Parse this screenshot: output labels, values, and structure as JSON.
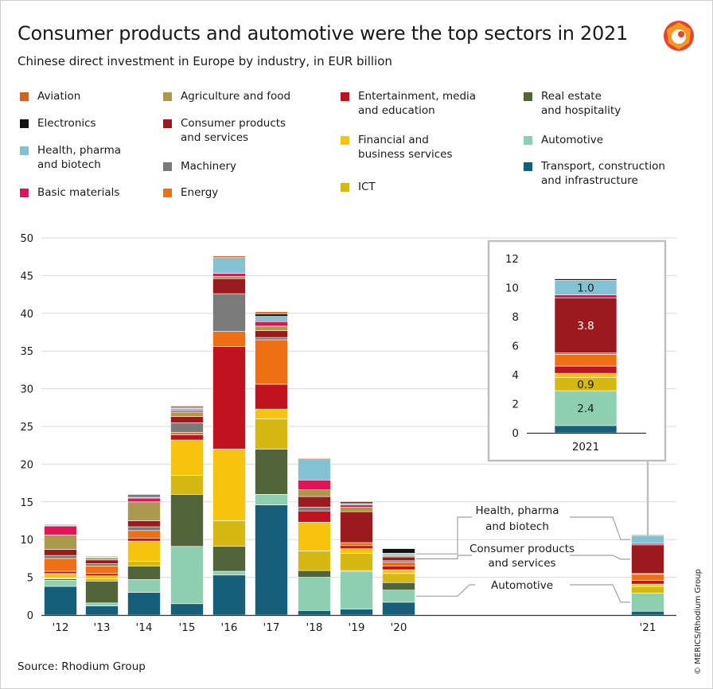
{
  "title": "Consumer products and automotive were the top sectors in 2021",
  "subtitle": "Chinese direct investment in Europe by industry, in EUR billion",
  "source": "Source: Rhodium Group",
  "credit": "© MERICS/Rhodium Group",
  "logo_icon": "merics-logo-icon",
  "colors": {
    "Transport, construction and infrastructure": "#155f7a",
    "Automotive": "#8ecfb2",
    "Real estate and hospitality": "#52653a",
    "ICT": "#d6b812",
    "Financial and business services": "#f6c40d",
    "Entertainment, media and education": "#c0121f",
    "Energy": "#ef7012",
    "Machinery": "#7a7a7a",
    "Consumer products and services": "#9b1a1e",
    "Agriculture and food": "#ab9a4e",
    "Basic materials": "#e01456",
    "Health, pharma and biotech": "#82c2d2",
    "Electronics": "#111111",
    "Aviation": "#d9601a"
  },
  "legend": [
    {
      "name": "Aviation",
      "label": [
        "Aviation"
      ]
    },
    {
      "name": "Electronics",
      "label": [
        "Electronics"
      ]
    },
    {
      "name": "Health, pharma and biotech",
      "label": [
        "Health, pharma",
        "and biotech"
      ]
    },
    {
      "name": "Basic materials",
      "label": [
        "Basic materials"
      ]
    },
    {
      "name": "Agriculture and food",
      "label": [
        "Agriculture and food"
      ]
    },
    {
      "name": "Consumer products and services",
      "label": [
        "Consumer products",
        "and services"
      ]
    },
    {
      "name": "Machinery",
      "label": [
        "Machinery"
      ]
    },
    {
      "name": "Energy",
      "label": [
        "Energy"
      ]
    },
    {
      "name": "Entertainment, media and education",
      "label": [
        "Entertainment, media",
        "and education"
      ]
    },
    {
      "name": "Financial and business services",
      "label": [
        "Financial and",
        "business services"
      ]
    },
    {
      "name": "ICT",
      "label": [
        "ICT"
      ]
    },
    {
      "name": "Real estate and hospitality",
      "label": [
        "Real estate",
        "and hospitality"
      ]
    },
    {
      "name": "Automotive",
      "label": [
        "Automotive"
      ]
    },
    {
      "name": "Transport, construction and infrastructure",
      "label": [
        "Transport, construction",
        "and infrastructure"
      ]
    }
  ],
  "annotations": [
    {
      "name": "Health, pharma and biotech",
      "label": [
        "Health, pharma",
        "and biotech"
      ]
    },
    {
      "name": "Consumer products and services",
      "label": [
        "Consumer products",
        "and services"
      ]
    },
    {
      "name": "Automotive",
      "label": [
        "Automotive"
      ]
    }
  ],
  "chart_data": [
    {
      "type": "bar",
      "stacked": true,
      "categories": [
        "'12",
        "'13",
        "'14",
        "'15",
        "'16",
        "'17",
        "'18",
        "'19",
        "'20",
        "'21"
      ],
      "ylim": [
        0,
        50
      ],
      "yticks": [
        0,
        5,
        10,
        15,
        20,
        25,
        30,
        35,
        40,
        45,
        50
      ],
      "grid": true,
      "series": [
        {
          "name": "Transport, construction and infrastructure",
          "values": [
            3.8,
            1.2,
            3.0,
            1.5,
            5.3,
            14.6,
            0.6,
            0.8,
            1.7,
            0.5
          ]
        },
        {
          "name": "Automotive",
          "values": [
            0.8,
            0.4,
            1.7,
            7.6,
            0.5,
            1.4,
            4.4,
            5.0,
            1.6,
            2.4
          ]
        },
        {
          "name": "Real estate and hospitality",
          "values": [
            0.2,
            2.9,
            1.8,
            6.9,
            3.3,
            6.0,
            0.9,
            0.1,
            1.0,
            0.0
          ]
        },
        {
          "name": "ICT",
          "values": [
            0.1,
            0.3,
            0.6,
            2.5,
            3.4,
            4.0,
            2.6,
            2.3,
            1.2,
            0.9
          ]
        },
        {
          "name": "Financial and business services",
          "values": [
            0.6,
            0.4,
            2.7,
            4.7,
            9.5,
            1.3,
            3.8,
            0.6,
            0.5,
            0.3
          ]
        },
        {
          "name": "Entertainment, media and education",
          "values": [
            0.3,
            0.3,
            0.4,
            0.7,
            13.6,
            3.3,
            1.5,
            0.4,
            0.5,
            0.5
          ]
        },
        {
          "name": "Energy",
          "values": [
            1.7,
            1.0,
            1.0,
            0.3,
            2.0,
            5.9,
            0.0,
            0.4,
            0.5,
            0.8
          ]
        },
        {
          "name": "Machinery",
          "values": [
            0.4,
            0.3,
            0.5,
            1.3,
            5.0,
            0.3,
            0.5,
            0.0,
            0.2,
            0.1
          ]
        },
        {
          "name": "Consumer products and services",
          "values": [
            0.8,
            0.5,
            0.8,
            0.8,
            2.0,
            0.9,
            1.4,
            4.1,
            0.5,
            3.8
          ]
        },
        {
          "name": "Agriculture and food",
          "values": [
            1.9,
            0.3,
            2.5,
            0.6,
            0.3,
            0.6,
            0.9,
            0.6,
            0.2,
            0.0
          ]
        },
        {
          "name": "Basic materials",
          "values": [
            1.2,
            0.0,
            0.5,
            0.2,
            0.4,
            0.6,
            1.3,
            0.3,
            0.1,
            0.2
          ]
        },
        {
          "name": "Health, pharma and biotech",
          "values": [
            0.1,
            0.1,
            0.2,
            0.3,
            2.0,
            0.7,
            2.7,
            0.2,
            0.2,
            1.0
          ]
        },
        {
          "name": "Electronics",
          "values": [
            0.0,
            0.0,
            0.2,
            0.1,
            0.1,
            0.3,
            0.1,
            0.2,
            0.6,
            0.1
          ]
        },
        {
          "name": "Aviation",
          "values": [
            0.1,
            0.1,
            0.1,
            0.2,
            0.2,
            0.3,
            0.1,
            0.1,
            0.0,
            0.0
          ]
        }
      ]
    },
    {
      "type": "bar",
      "stacked": true,
      "categories": [
        "2021"
      ],
      "ylim": [
        0,
        12
      ],
      "yticks": [
        0,
        2,
        4,
        6,
        8,
        10,
        12
      ],
      "grid": false,
      "data_labels": [
        {
          "series": "Automotive",
          "label": "2.4"
        },
        {
          "series": "ICT",
          "label": "0.9"
        },
        {
          "series": "Consumer products and services",
          "label": "3.8"
        },
        {
          "series": "Health, pharma and biotech",
          "label": "1.0"
        }
      ]
    }
  ]
}
